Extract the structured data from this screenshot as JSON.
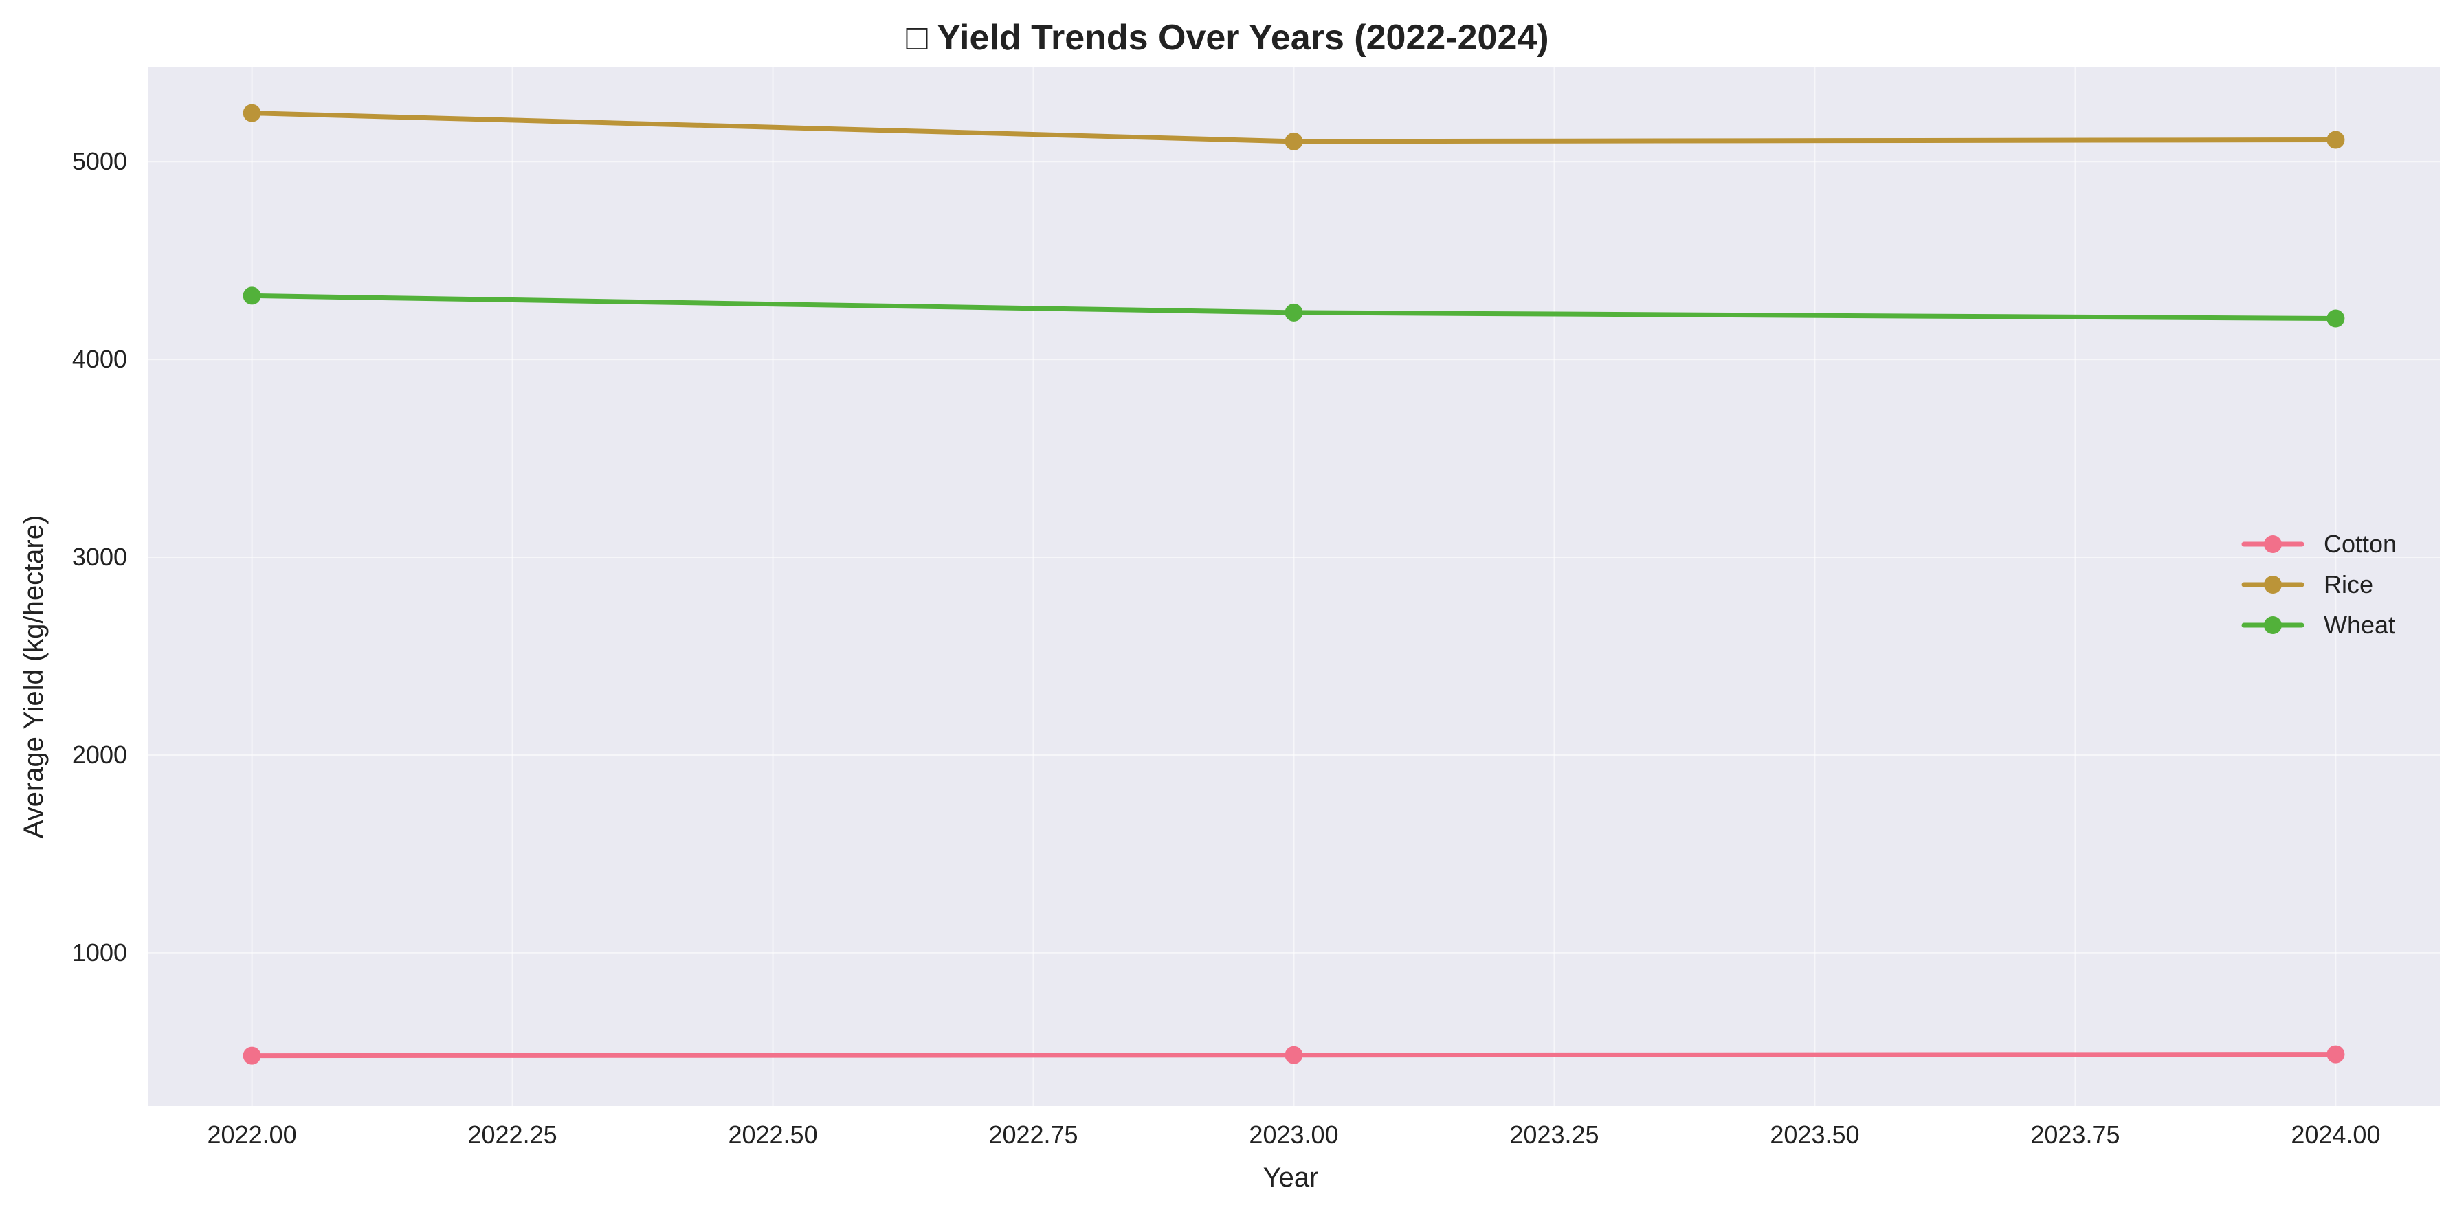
{
  "chart_data": {
    "type": "line",
    "title": "□ Yield Trends Over Years (2022-2024)",
    "xlabel": "Year",
    "ylabel": "Average Yield (kg/hectare)",
    "x": [
      2022,
      2023,
      2024
    ],
    "xlim": [
      2021.9,
      2024.1
    ],
    "ylim": [
      225,
      5480
    ],
    "x_ticks": [
      2022.0,
      2022.25,
      2022.5,
      2022.75,
      2023.0,
      2023.25,
      2023.5,
      2023.75,
      2024.0
    ],
    "x_tick_labels": [
      "2022.00",
      "2022.25",
      "2022.50",
      "2022.75",
      "2023.00",
      "2023.25",
      "2023.50",
      "2023.75",
      "2024.00"
    ],
    "y_ticks": [
      1000,
      2000,
      3000,
      4000,
      5000
    ],
    "y_tick_labels": [
      "1000",
      "2000",
      "3000",
      "4000",
      "5000"
    ],
    "grid": true,
    "legend_position": "right",
    "background_color": "#eaeaf2",
    "series": [
      {
        "name": "Cotton",
        "color": "#f2708a",
        "values": [
          480,
          483,
          487
        ]
      },
      {
        "name": "Rice",
        "color": "#bb9438",
        "values": [
          5245,
          5102,
          5110
        ]
      },
      {
        "name": "Wheat",
        "color": "#52b13a",
        "values": [
          4322,
          4237,
          4207
        ]
      }
    ]
  }
}
